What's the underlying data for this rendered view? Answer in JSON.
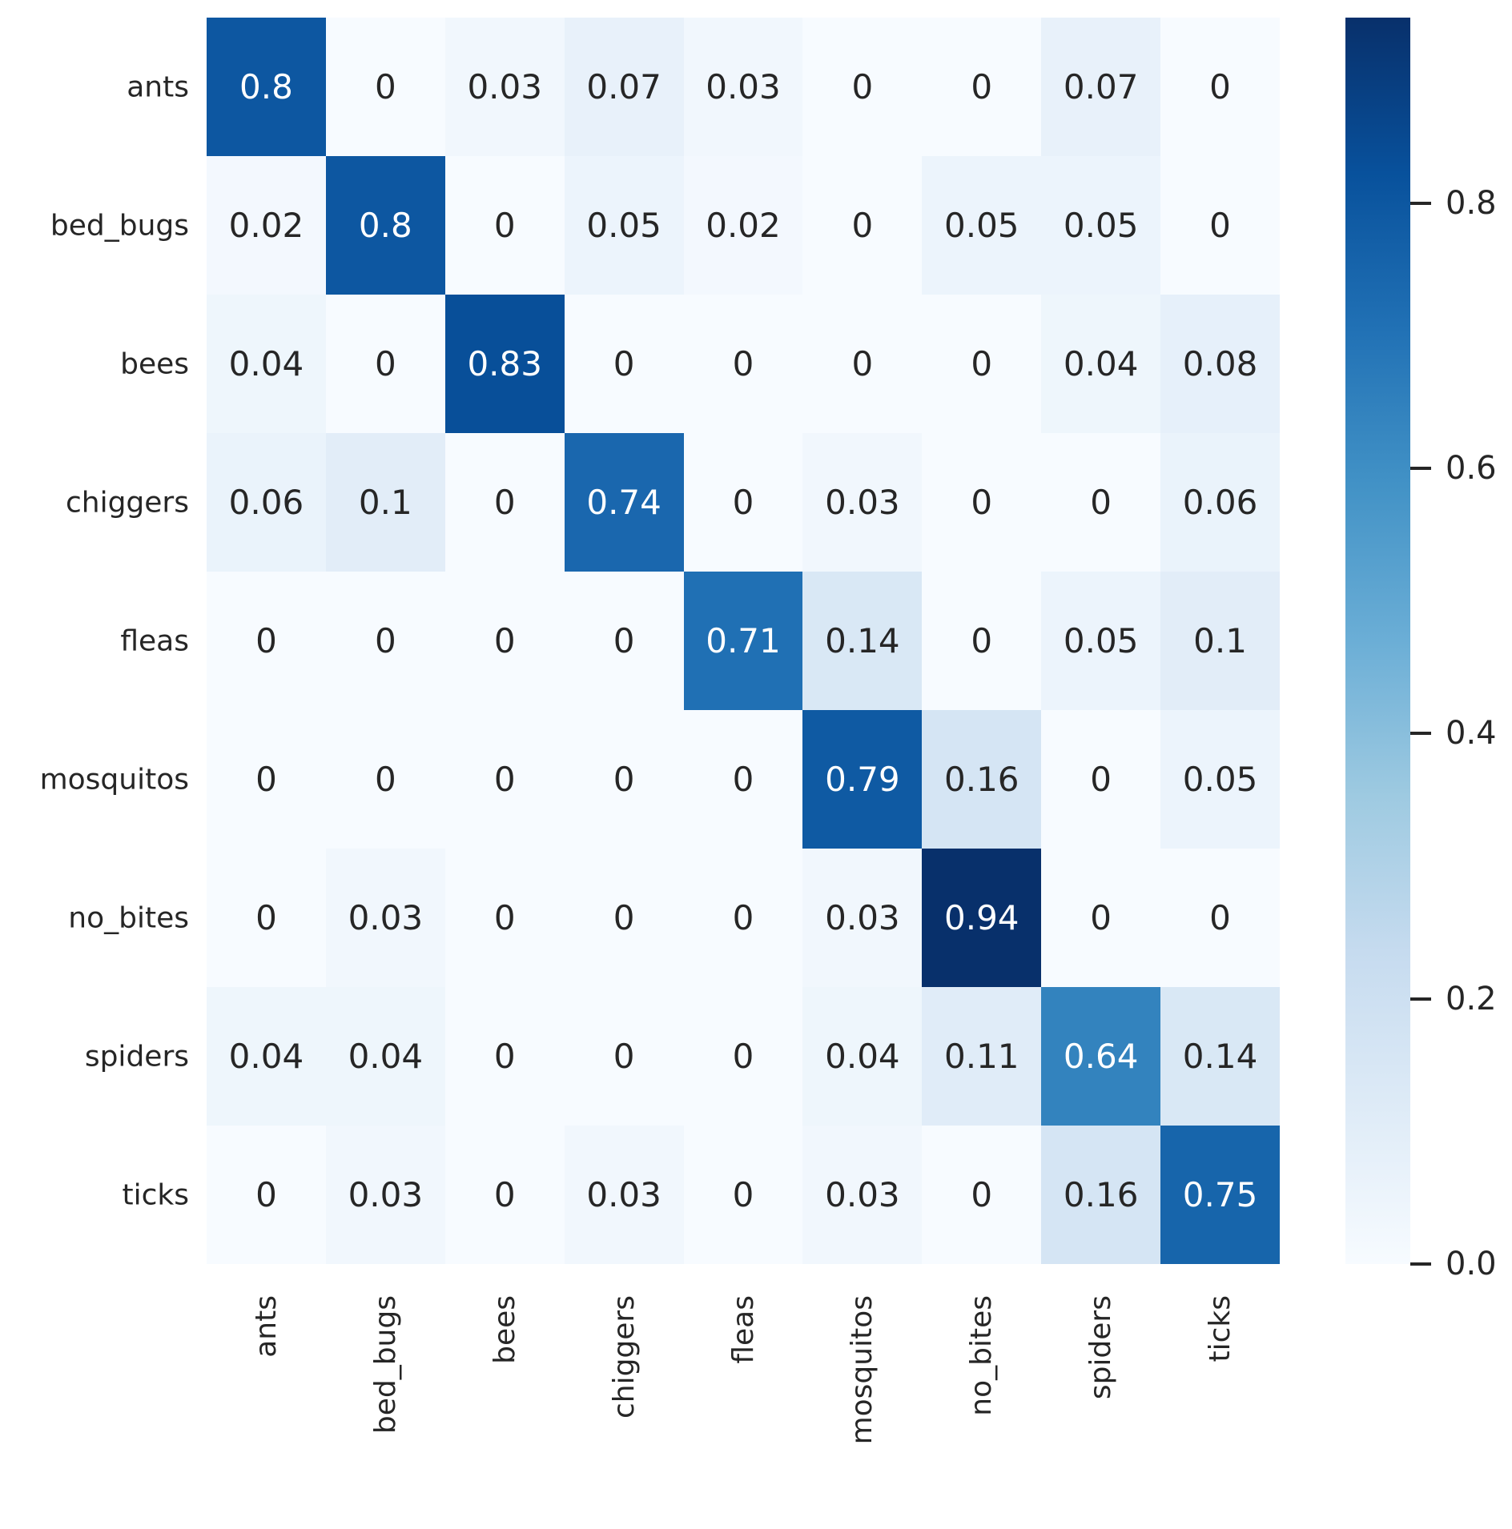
{
  "chart_data": {
    "type": "heatmap",
    "title": "",
    "xlabel": "",
    "ylabel": "",
    "x_categories": [
      "ants",
      "bed_bugs",
      "bees",
      "chiggers",
      "fleas",
      "mosquitos",
      "no_bites",
      "spiders",
      "ticks"
    ],
    "y_categories": [
      "ants",
      "bed_bugs",
      "bees",
      "chiggers",
      "fleas",
      "mosquitos",
      "no_bites",
      "spiders",
      "ticks"
    ],
    "matrix": [
      [
        0.8,
        0,
        0.03,
        0.07,
        0.03,
        0,
        0,
        0.07,
        0
      ],
      [
        0.02,
        0.8,
        0,
        0.05,
        0.02,
        0,
        0.05,
        0.05,
        0
      ],
      [
        0.04,
        0,
        0.83,
        0,
        0,
        0,
        0,
        0.04,
        0.08
      ],
      [
        0.06,
        0.1,
        0,
        0.74,
        0,
        0.03,
        0,
        0,
        0.06
      ],
      [
        0,
        0,
        0,
        0,
        0.71,
        0.14,
        0,
        0.05,
        0.1
      ],
      [
        0,
        0,
        0,
        0,
        0,
        0.79,
        0.16,
        0,
        0.05
      ],
      [
        0,
        0.03,
        0,
        0,
        0,
        0.03,
        0.94,
        0,
        0
      ],
      [
        0.04,
        0.04,
        0,
        0,
        0,
        0.04,
        0.11,
        0.64,
        0.14
      ],
      [
        0,
        0.03,
        0,
        0.03,
        0,
        0.03,
        0,
        0.16,
        0.75
      ]
    ],
    "vmin": 0,
    "vmax": 0.94,
    "colormap": "Blues",
    "grid": false,
    "legend_position": "right-colorbar",
    "colorbar": {
      "tick_labels": [
        "0.8",
        "0.6",
        "0.4",
        "0.2",
        "0.0"
      ],
      "tick_values": [
        0.8,
        0.6,
        0.4,
        0.2,
        0.0
      ]
    }
  },
  "colors": {
    "cmap_stops": [
      "#f7fbff",
      "#deebf7",
      "#c6dbef",
      "#9ecae1",
      "#6baed6",
      "#4292c6",
      "#2171b5",
      "#08519c",
      "#08306b"
    ],
    "annotation_dark_text": "#262626",
    "annotation_light_text": "#ffffff",
    "axis_text": "#262626",
    "background": "#ffffff"
  }
}
